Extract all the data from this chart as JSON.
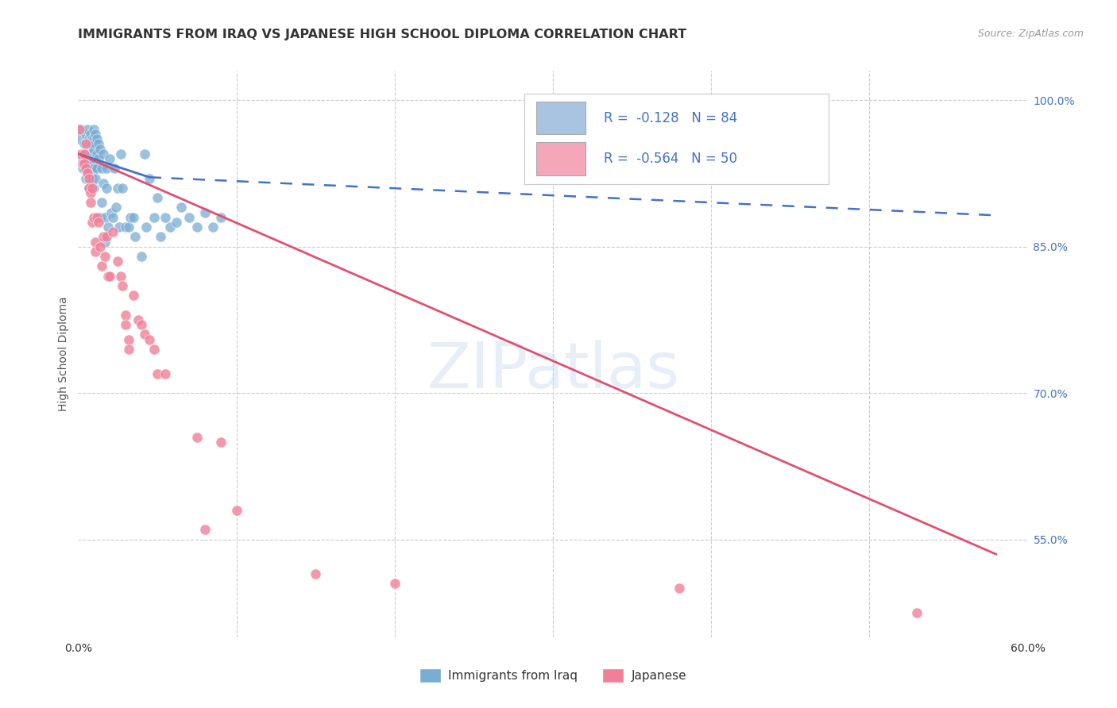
{
  "title": "IMMIGRANTS FROM IRAQ VS JAPANESE HIGH SCHOOL DIPLOMA CORRELATION CHART",
  "source": "Source: ZipAtlas.com",
  "ylabel": "High School Diploma",
  "xlim": [
    0.0,
    0.6
  ],
  "ylim": [
    0.45,
    1.03
  ],
  "yticks": [
    0.55,
    0.7,
    0.85,
    1.0
  ],
  "ytick_labels": [
    "55.0%",
    "70.0%",
    "85.0%",
    "100.0%"
  ],
  "legend_iraq_r": "-0.128",
  "legend_iraq_n": "84",
  "legend_japan_r": "-0.564",
  "legend_japan_n": "50",
  "legend_iraq_color": "#a8c4e0",
  "legend_japan_color": "#f4a7b9",
  "iraq_color": "#7aadd4",
  "japan_color": "#f08098",
  "trendline_iraq_color": "#4472c4",
  "trendline_japan_color": "#e05070",
  "watermark": "ZIPatlas",
  "background_color": "#ffffff",
  "grid_color": "#cccccc",
  "iraq_scatter": [
    [
      0.001,
      0.96
    ],
    [
      0.002,
      0.97
    ],
    [
      0.003,
      0.94
    ],
    [
      0.003,
      0.93
    ],
    [
      0.004,
      0.955
    ],
    [
      0.004,
      0.93
    ],
    [
      0.005,
      0.965
    ],
    [
      0.005,
      0.945
    ],
    [
      0.005,
      0.92
    ],
    [
      0.006,
      0.97
    ],
    [
      0.006,
      0.955
    ],
    [
      0.006,
      0.945
    ],
    [
      0.006,
      0.935
    ],
    [
      0.007,
      0.96
    ],
    [
      0.007,
      0.955
    ],
    [
      0.007,
      0.945
    ],
    [
      0.007,
      0.92
    ],
    [
      0.007,
      0.91
    ],
    [
      0.008,
      0.965
    ],
    [
      0.008,
      0.955
    ],
    [
      0.008,
      0.945
    ],
    [
      0.008,
      0.94
    ],
    [
      0.008,
      0.93
    ],
    [
      0.008,
      0.92
    ],
    [
      0.009,
      0.96
    ],
    [
      0.009,
      0.955
    ],
    [
      0.009,
      0.945
    ],
    [
      0.009,
      0.935
    ],
    [
      0.009,
      0.92
    ],
    [
      0.01,
      0.97
    ],
    [
      0.01,
      0.96
    ],
    [
      0.01,
      0.95
    ],
    [
      0.01,
      0.93
    ],
    [
      0.01,
      0.91
    ],
    [
      0.011,
      0.965
    ],
    [
      0.011,
      0.955
    ],
    [
      0.011,
      0.94
    ],
    [
      0.011,
      0.92
    ],
    [
      0.012,
      0.96
    ],
    [
      0.012,
      0.945
    ],
    [
      0.012,
      0.93
    ],
    [
      0.013,
      0.955
    ],
    [
      0.013,
      0.94
    ],
    [
      0.014,
      0.95
    ],
    [
      0.014,
      0.88
    ],
    [
      0.015,
      0.93
    ],
    [
      0.015,
      0.895
    ],
    [
      0.016,
      0.945
    ],
    [
      0.016,
      0.915
    ],
    [
      0.017,
      0.88
    ],
    [
      0.017,
      0.855
    ],
    [
      0.018,
      0.93
    ],
    [
      0.018,
      0.91
    ],
    [
      0.019,
      0.87
    ],
    [
      0.02,
      0.94
    ],
    [
      0.021,
      0.885
    ],
    [
      0.022,
      0.88
    ],
    [
      0.023,
      0.93
    ],
    [
      0.024,
      0.89
    ],
    [
      0.025,
      0.91
    ],
    [
      0.026,
      0.87
    ],
    [
      0.027,
      0.945
    ],
    [
      0.028,
      0.91
    ],
    [
      0.03,
      0.87
    ],
    [
      0.032,
      0.87
    ],
    [
      0.033,
      0.88
    ],
    [
      0.035,
      0.88
    ],
    [
      0.036,
      0.86
    ],
    [
      0.04,
      0.84
    ],
    [
      0.042,
      0.945
    ],
    [
      0.043,
      0.87
    ],
    [
      0.045,
      0.92
    ],
    [
      0.048,
      0.88
    ],
    [
      0.05,
      0.9
    ],
    [
      0.052,
      0.86
    ],
    [
      0.055,
      0.88
    ],
    [
      0.058,
      0.87
    ],
    [
      0.062,
      0.875
    ],
    [
      0.065,
      0.89
    ],
    [
      0.07,
      0.88
    ],
    [
      0.075,
      0.87
    ],
    [
      0.08,
      0.885
    ],
    [
      0.085,
      0.87
    ],
    [
      0.09,
      0.88
    ]
  ],
  "japan_scatter": [
    [
      0.001,
      0.97
    ],
    [
      0.002,
      0.945
    ],
    [
      0.003,
      0.935
    ],
    [
      0.004,
      0.945
    ],
    [
      0.004,
      0.935
    ],
    [
      0.005,
      0.955
    ],
    [
      0.005,
      0.93
    ],
    [
      0.006,
      0.925
    ],
    [
      0.007,
      0.92
    ],
    [
      0.007,
      0.91
    ],
    [
      0.008,
      0.905
    ],
    [
      0.008,
      0.895
    ],
    [
      0.009,
      0.91
    ],
    [
      0.009,
      0.875
    ],
    [
      0.01,
      0.88
    ],
    [
      0.011,
      0.855
    ],
    [
      0.011,
      0.845
    ],
    [
      0.012,
      0.88
    ],
    [
      0.013,
      0.875
    ],
    [
      0.014,
      0.85
    ],
    [
      0.015,
      0.83
    ],
    [
      0.016,
      0.86
    ],
    [
      0.017,
      0.84
    ],
    [
      0.018,
      0.86
    ],
    [
      0.019,
      0.82
    ],
    [
      0.02,
      0.82
    ],
    [
      0.022,
      0.865
    ],
    [
      0.025,
      0.835
    ],
    [
      0.027,
      0.82
    ],
    [
      0.028,
      0.81
    ],
    [
      0.03,
      0.78
    ],
    [
      0.03,
      0.77
    ],
    [
      0.032,
      0.755
    ],
    [
      0.032,
      0.745
    ],
    [
      0.035,
      0.8
    ],
    [
      0.038,
      0.775
    ],
    [
      0.04,
      0.77
    ],
    [
      0.042,
      0.76
    ],
    [
      0.045,
      0.755
    ],
    [
      0.048,
      0.745
    ],
    [
      0.05,
      0.72
    ],
    [
      0.055,
      0.72
    ],
    [
      0.075,
      0.655
    ],
    [
      0.08,
      0.56
    ],
    [
      0.09,
      0.65
    ],
    [
      0.1,
      0.58
    ],
    [
      0.15,
      0.515
    ],
    [
      0.2,
      0.505
    ],
    [
      0.38,
      0.5
    ],
    [
      0.53,
      0.475
    ]
  ],
  "iraq_trendline_solid": [
    [
      0.0,
      0.945
    ],
    [
      0.045,
      0.921
    ]
  ],
  "iraq_trendline_dash": [
    [
      0.045,
      0.921
    ],
    [
      0.58,
      0.882
    ]
  ],
  "japan_trendline": [
    [
      0.0,
      0.945
    ],
    [
      0.58,
      0.535
    ]
  ]
}
